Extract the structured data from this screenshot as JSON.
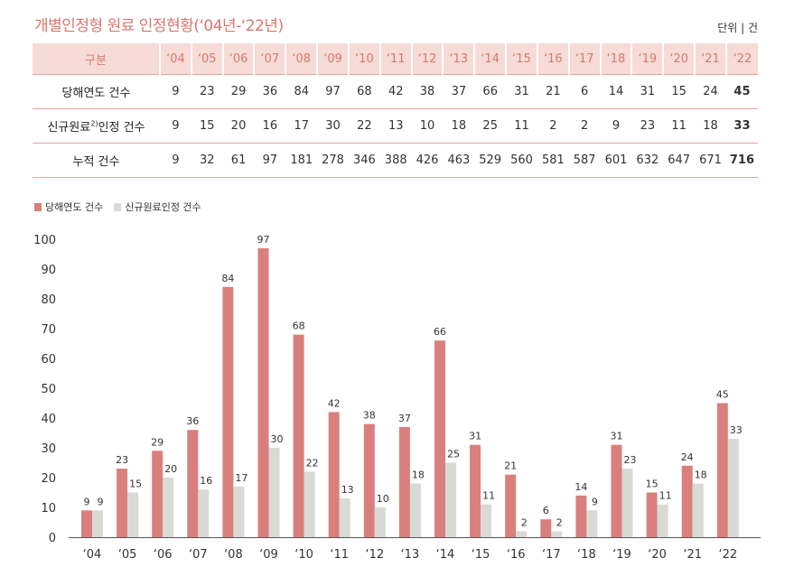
{
  "title": "개별인정형 원료 인정현황(‘04년-‘22년)",
  "unit": "단위 | 건",
  "colors": {
    "series1": "#d9807c",
    "series2": "#d8dad6",
    "accent": "#d9766f",
    "header_bg": "#f6dbd6"
  },
  "table": {
    "header_label": "구분",
    "years": [
      "‘04",
      "‘05",
      "‘06",
      "‘07",
      "‘08",
      "‘09",
      "‘10",
      "‘11",
      "‘12",
      "‘13",
      "‘14",
      "‘15",
      "‘16",
      "‘17",
      "‘18",
      "‘19",
      "‘20",
      "‘21",
      "‘22"
    ],
    "rows": [
      {
        "label": "당해연도 건수",
        "values": [
          "9",
          "23",
          "29",
          "36",
          "84",
          "97",
          "68",
          "42",
          "38",
          "37",
          "66",
          "31",
          "21",
          "6",
          "14",
          "31",
          "15",
          "24",
          "45"
        ]
      },
      {
        "label": "신규원료",
        "label_sup": "2)",
        "label_suffix": "인정 건수",
        "values": [
          "9",
          "15",
          "20",
          "16",
          "17",
          "30",
          "22",
          "13",
          "10",
          "18",
          "25",
          "11",
          "2",
          "2",
          "9",
          "23",
          "11",
          "18",
          "33"
        ]
      },
      {
        "label": "누적 건수",
        "values": [
          "9",
          "32",
          "61",
          "97",
          "181",
          "278",
          "346",
          "388",
          "426",
          "463",
          "529",
          "560",
          "581",
          "587",
          "601",
          "632",
          "647",
          "671",
          "716"
        ]
      }
    ]
  },
  "legend": {
    "series1": "당해연도 건수",
    "series2": "신규원료인정 건수"
  },
  "chart_data": {
    "type": "bar",
    "categories": [
      "‘04",
      "‘05",
      "‘06",
      "‘07",
      "‘08",
      "‘09",
      "‘10",
      "‘11",
      "‘12",
      "‘13",
      "‘14",
      "‘15",
      "‘16",
      "‘17",
      "‘18",
      "‘19",
      "‘20",
      "‘21",
      "‘22"
    ],
    "series": [
      {
        "name": "당해연도 건수",
        "values": [
          9,
          23,
          29,
          36,
          84,
          97,
          68,
          42,
          38,
          37,
          66,
          31,
          21,
          6,
          14,
          31,
          15,
          24,
          45
        ]
      },
      {
        "name": "신규원료인정 건수",
        "values": [
          9,
          15,
          20,
          16,
          17,
          30,
          22,
          13,
          10,
          18,
          25,
          11,
          2,
          2,
          9,
          23,
          11,
          18,
          33
        ]
      }
    ],
    "yticks": [
      0,
      10,
      20,
      30,
      40,
      50,
      60,
      70,
      80,
      90,
      100
    ],
    "ylim": [
      0,
      100
    ],
    "legend_position": "top-left",
    "grid": false
  }
}
